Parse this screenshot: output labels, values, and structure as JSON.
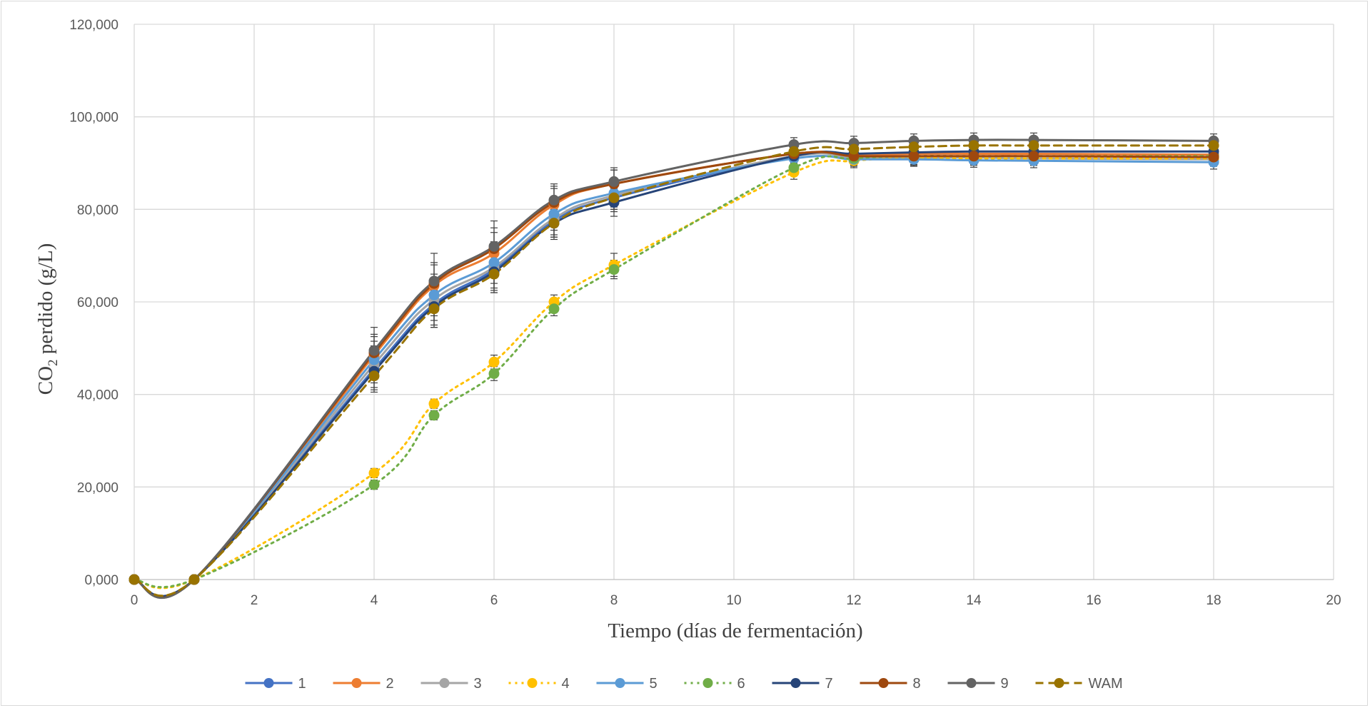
{
  "chart_data": {
    "type": "line",
    "xlabel": "Tiempo (días de fermentación)",
    "ylabel": "CO",
    "ylabel_sub": "2",
    "ylabel_rest": " perdido (g/L)",
    "xlim": [
      0,
      20
    ],
    "ylim": [
      0,
      120000
    ],
    "x_ticks": [
      "0",
      "2",
      "4",
      "6",
      "8",
      "10",
      "12",
      "14",
      "16",
      "18",
      "20"
    ],
    "y_ticks": [
      "0,000",
      "20,000",
      "40,000",
      "60,000",
      "80,000",
      "100,000",
      "120,000"
    ],
    "grid": true,
    "legend_position": "bottom",
    "x": [
      0,
      1,
      4,
      5,
      6,
      7,
      8,
      11,
      12,
      13,
      14,
      15,
      18
    ],
    "series": [
      {
        "name": "1",
        "color": "#4472c4",
        "dash": "solid",
        "values": [
          0,
          0,
          45500,
          59500,
          67000,
          77500,
          82500,
          91500,
          91800,
          92000,
          92000,
          92000,
          91800
        ],
        "errors": [
          0,
          0,
          4000,
          4500,
          4500,
          3500,
          3000,
          1500,
          1500,
          1500,
          1500,
          1500,
          1500
        ]
      },
      {
        "name": "2",
        "color": "#ed7d31",
        "dash": "solid",
        "values": [
          0,
          0,
          48500,
          63500,
          70500,
          81000,
          85500,
          92000,
          91800,
          92000,
          92000,
          92000,
          91800
        ],
        "errors": [
          0,
          0,
          4000,
          4500,
          4500,
          3500,
          3000,
          1500,
          1500,
          1500,
          1500,
          1500,
          1500
        ]
      },
      {
        "name": "3",
        "color": "#a5a5a5",
        "dash": "solid",
        "values": [
          0,
          0,
          46500,
          60500,
          67500,
          78000,
          83000,
          91500,
          91200,
          91200,
          91200,
          91000,
          90800
        ],
        "errors": [
          0,
          0,
          4000,
          4500,
          4500,
          3500,
          3000,
          1500,
          1500,
          1500,
          1500,
          1500,
          1500
        ]
      },
      {
        "name": "4",
        "color": "#ffc000",
        "dash": "dot",
        "values": [
          0,
          0,
          23000,
          38000,
          47000,
          60000,
          68000,
          88000,
          90500,
          91000,
          91000,
          91000,
          91000
        ],
        "errors": [
          0,
          0,
          1000,
          1000,
          1500,
          1500,
          2500,
          1500,
          1500,
          1500,
          1500,
          1500,
          1500
        ]
      },
      {
        "name": "5",
        "color": "#5b9bd5",
        "dash": "solid",
        "values": [
          0,
          0,
          47500,
          61500,
          68500,
          79000,
          83500,
          91000,
          90800,
          90800,
          90600,
          90500,
          90200
        ],
        "errors": [
          0,
          0,
          4000,
          4500,
          4500,
          3500,
          3000,
          1500,
          1500,
          1500,
          1500,
          1500,
          1500
        ]
      },
      {
        "name": "6",
        "color": "#70ad47",
        "dash": "dot",
        "values": [
          0,
          0,
          20500,
          35500,
          44500,
          58500,
          67000,
          89000,
          91000,
          91500,
          91500,
          91500,
          91500
        ],
        "errors": [
          0,
          0,
          1000,
          1000,
          1500,
          1500,
          2000,
          1500,
          1500,
          1500,
          1500,
          1500,
          1500
        ]
      },
      {
        "name": "7",
        "color": "#264478",
        "dash": "solid",
        "values": [
          0,
          0,
          45000,
          59000,
          66500,
          77000,
          81500,
          91500,
          92000,
          92300,
          92500,
          92500,
          92500
        ],
        "errors": [
          0,
          0,
          4000,
          4500,
          4500,
          3500,
          3000,
          1500,
          1500,
          1500,
          1500,
          1500,
          1500
        ]
      },
      {
        "name": "8",
        "color": "#9e480e",
        "dash": "solid",
        "values": [
          0,
          0,
          49000,
          64000,
          71500,
          81500,
          85500,
          92000,
          91500,
          91500,
          91500,
          91500,
          91300
        ],
        "errors": [
          0,
          0,
          4000,
          4500,
          4500,
          3500,
          3000,
          1500,
          1500,
          1500,
          1500,
          1500,
          1500
        ]
      },
      {
        "name": "9",
        "color": "#636363",
        "dash": "solid",
        "values": [
          0,
          0,
          49500,
          64500,
          72000,
          82000,
          86000,
          94000,
          94300,
          94800,
          95000,
          95000,
          94800
        ],
        "errors": [
          0,
          0,
          5000,
          6000,
          5500,
          3500,
          3000,
          1500,
          1500,
          1500,
          1500,
          1500,
          1500
        ]
      },
      {
        "name": "WAM",
        "color": "#997300",
        "dash": "dash",
        "values": [
          0,
          0,
          44000,
          58500,
          66000,
          77000,
          82500,
          92500,
          93000,
          93500,
          93800,
          93800,
          93800
        ],
        "errors": [
          0,
          0,
          3500,
          4000,
          4000,
          3000,
          2500,
          1500,
          1500,
          1500,
          1500,
          1500,
          1500
        ]
      }
    ]
  }
}
